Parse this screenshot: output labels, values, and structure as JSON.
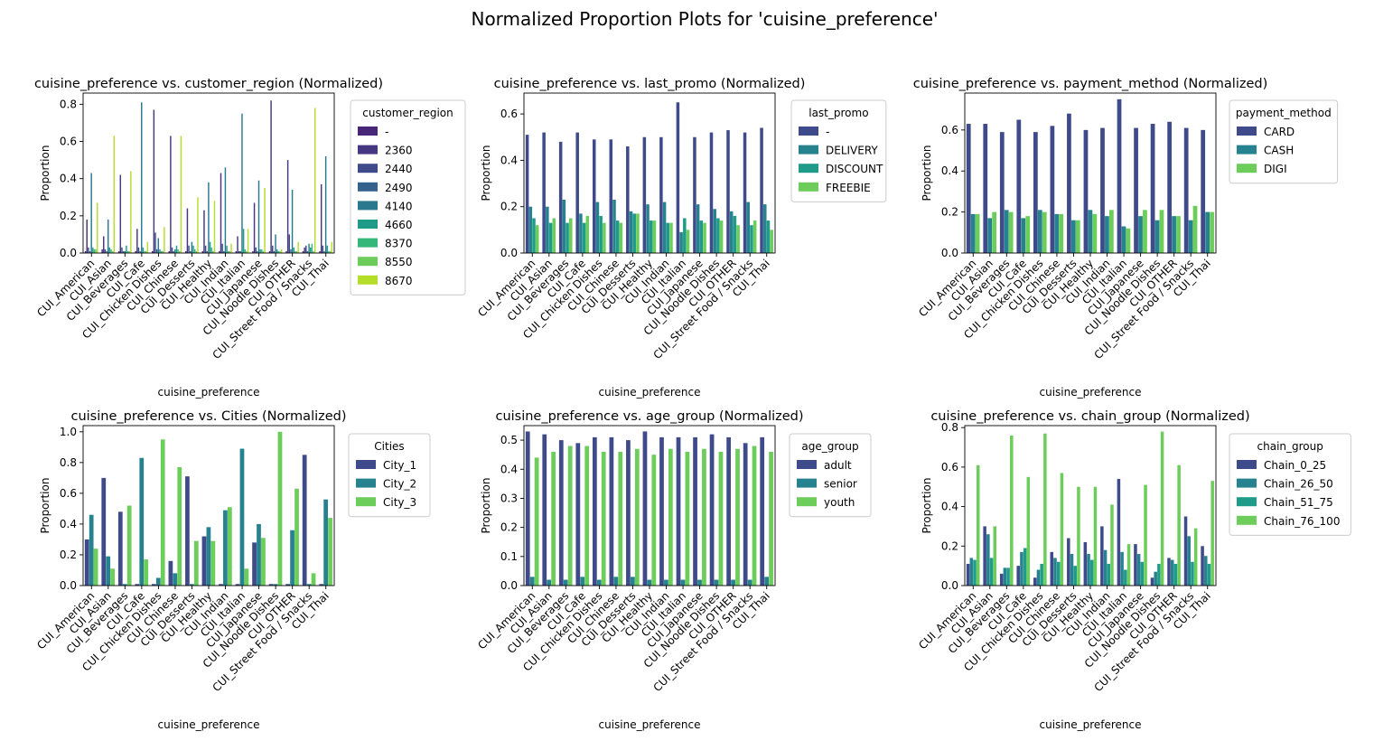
{
  "figure": {
    "title": "Normalized Proportion Plots for 'cuisine_preference'"
  },
  "categories": [
    "CUI_American",
    "CUI_Asian",
    "CUI_Beverages",
    "CUI_Cafe",
    "CUI_Chicken Dishes",
    "CUI_Chinese",
    "CUI_Desserts",
    "CUI_Healthy",
    "CUI_Indian",
    "CUI_Italian",
    "CUI_Japanese",
    "CUI_Noodle Dishes",
    "CUI_OTHER",
    "CUI_Street Food / Snacks",
    "CUI_Thai"
  ],
  "chart_data": [
    {
      "type": "bar",
      "title": "cuisine_preference vs. customer_region (Normalized)",
      "xlabel": "cuisine_preference",
      "ylabel": "Proportion",
      "ylim": [
        0,
        0.86
      ],
      "yticks": [
        0.0,
        0.2,
        0.4,
        0.6,
        0.8
      ],
      "legend_title": "customer_region",
      "legend_position": "outside-right",
      "series": [
        {
          "name": "-",
          "color": "#482677",
          "values": [
            0.01,
            0.02,
            0.01,
            0.01,
            0.01,
            0.01,
            0.01,
            0.01,
            0.01,
            0.01,
            0.01,
            0.01,
            0.01,
            0.01,
            0.01
          ]
        },
        {
          "name": "2360",
          "color": "#453781",
          "values": [
            0.18,
            0.09,
            0.42,
            0.13,
            0.77,
            0.63,
            0.24,
            0.23,
            0.43,
            0.09,
            0.27,
            0.82,
            0.5,
            0.03,
            0.37
          ]
        },
        {
          "name": "2440",
          "color": "#3E4A89",
          "values": [
            0.03,
            0.02,
            0.03,
            0.03,
            0.11,
            0.03,
            0.04,
            0.04,
            0.05,
            0.01,
            0.03,
            0.04,
            0.1,
            0.04,
            0.04
          ]
        },
        {
          "name": "2490",
          "color": "#33638D",
          "values": [
            0.01,
            0.01,
            0.01,
            0.01,
            0.02,
            0.01,
            0.01,
            0.01,
            0.01,
            0.01,
            0.01,
            0.01,
            0.02,
            0.01,
            0.01
          ]
        },
        {
          "name": "4140",
          "color": "#2A788E",
          "values": [
            0.43,
            0.18,
            0.01,
            0.81,
            0.08,
            0.02,
            0.06,
            0.38,
            0.46,
            0.75,
            0.39,
            0.1,
            0.34,
            0.05,
            0.52
          ]
        },
        {
          "name": "4660",
          "color": "#1E9C89",
          "values": [
            0.03,
            0.03,
            0.04,
            0.03,
            0.02,
            0.04,
            0.04,
            0.06,
            0.04,
            0.13,
            0.02,
            0.02,
            0.03,
            0.03,
            0.04
          ]
        },
        {
          "name": "8370",
          "color": "#35B779",
          "values": [
            0.02,
            0.02,
            0.01,
            0.01,
            0.01,
            0.02,
            0.02,
            0.03,
            0.01,
            0.02,
            0.02,
            0.01,
            0.01,
            0.05,
            0.01
          ]
        },
        {
          "name": "8550",
          "color": "#6CCD5A",
          "values": [
            0.02,
            0.01,
            0.01,
            0.01,
            0.01,
            0.01,
            0.01,
            0.01,
            0.01,
            0.01,
            0.01,
            0.01,
            0.01,
            0.01,
            0.01
          ]
        },
        {
          "name": "8670",
          "color": "#B5DE2B",
          "values": [
            0.27,
            0.63,
            0.44,
            0.06,
            0.14,
            0.63,
            0.3,
            0.28,
            0.05,
            0.13,
            0.35,
            0.02,
            0.06,
            0.78,
            0.06
          ]
        }
      ]
    },
    {
      "type": "bar",
      "title": "cuisine_preference vs. last_promo (Normalized)",
      "xlabel": "cuisine_preference",
      "ylabel": "Proportion",
      "ylim": [
        0,
        0.69
      ],
      "yticks": [
        0.0,
        0.2,
        0.4,
        0.6
      ],
      "legend_title": "last_promo",
      "legend_position": "outside-right",
      "series": [
        {
          "name": "-",
          "color": "#3E4A89",
          "values": [
            0.51,
            0.52,
            0.48,
            0.52,
            0.49,
            0.49,
            0.46,
            0.5,
            0.5,
            0.65,
            0.5,
            0.52,
            0.53,
            0.52,
            0.54
          ]
        },
        {
          "name": "DELIVERY",
          "color": "#26828E",
          "values": [
            0.2,
            0.2,
            0.23,
            0.17,
            0.22,
            0.23,
            0.18,
            0.21,
            0.22,
            0.09,
            0.21,
            0.19,
            0.18,
            0.22,
            0.21
          ]
        },
        {
          "name": "DISCOUNT",
          "color": "#1E9C89",
          "values": [
            0.15,
            0.13,
            0.13,
            0.13,
            0.16,
            0.14,
            0.17,
            0.14,
            0.13,
            0.15,
            0.14,
            0.15,
            0.16,
            0.12,
            0.14
          ]
        },
        {
          "name": "FREEBIE",
          "color": "#6CCD5A",
          "values": [
            0.12,
            0.15,
            0.15,
            0.16,
            0.13,
            0.13,
            0.17,
            0.14,
            0.13,
            0.1,
            0.13,
            0.14,
            0.12,
            0.14,
            0.1
          ]
        }
      ]
    },
    {
      "type": "bar",
      "title": "cuisine_preference vs. payment_method (Normalized)",
      "xlabel": "cuisine_preference",
      "ylabel": "Proportion",
      "ylim": [
        0,
        0.78
      ],
      "yticks": [
        0.0,
        0.2,
        0.4,
        0.6
      ],
      "legend_title": "payment_method",
      "legend_position": "outside-right",
      "series": [
        {
          "name": "CARD",
          "color": "#3E4A89",
          "values": [
            0.63,
            0.63,
            0.59,
            0.65,
            0.59,
            0.62,
            0.68,
            0.6,
            0.61,
            0.75,
            0.61,
            0.63,
            0.64,
            0.61,
            0.6
          ]
        },
        {
          "name": "CASH",
          "color": "#26828E",
          "values": [
            0.19,
            0.17,
            0.21,
            0.17,
            0.21,
            0.19,
            0.16,
            0.21,
            0.18,
            0.13,
            0.18,
            0.16,
            0.18,
            0.16,
            0.2
          ]
        },
        {
          "name": "DIGI",
          "color": "#6CCD5A",
          "values": [
            0.19,
            0.2,
            0.2,
            0.18,
            0.2,
            0.19,
            0.16,
            0.19,
            0.21,
            0.12,
            0.21,
            0.21,
            0.18,
            0.23,
            0.2
          ]
        }
      ]
    },
    {
      "type": "bar",
      "title": "cuisine_preference vs. Cities (Normalized)",
      "xlabel": "cuisine_preference",
      "ylabel": "Proportion",
      "ylim": [
        0,
        1.04
      ],
      "yticks": [
        0.0,
        0.2,
        0.4,
        0.6,
        0.8,
        1.0
      ],
      "legend_title": "Cities",
      "legend_position": "outside-right",
      "series": [
        {
          "name": "City_1",
          "color": "#3E4A89",
          "values": [
            0.3,
            0.7,
            0.48,
            0.01,
            0.01,
            0.16,
            0.71,
            0.32,
            0.01,
            0.01,
            0.28,
            0.01,
            0.01,
            0.85,
            0.01
          ]
        },
        {
          "name": "City_2",
          "color": "#26828E",
          "values": [
            0.46,
            0.19,
            0.01,
            0.83,
            0.05,
            0.08,
            0.01,
            0.38,
            0.49,
            0.89,
            0.4,
            0.01,
            0.36,
            0.01,
            0.56
          ]
        },
        {
          "name": "City_3",
          "color": "#6CCD5A",
          "values": [
            0.24,
            0.11,
            0.52,
            0.17,
            0.95,
            0.77,
            0.29,
            0.29,
            0.51,
            0.11,
            0.31,
            1.0,
            0.63,
            0.08,
            0.44
          ]
        }
      ]
    },
    {
      "type": "bar",
      "title": "cuisine_preference vs. age_group (Normalized)",
      "xlabel": "cuisine_preference",
      "ylabel": "Proportion",
      "ylim": [
        0,
        0.55
      ],
      "yticks": [
        0.0,
        0.1,
        0.2,
        0.3,
        0.4,
        0.5
      ],
      "legend_title": "age_group",
      "legend_position": "outside-right",
      "series": [
        {
          "name": "adult",
          "color": "#3E4A89",
          "values": [
            0.53,
            0.52,
            0.5,
            0.49,
            0.51,
            0.51,
            0.5,
            0.53,
            0.51,
            0.51,
            0.51,
            0.52,
            0.51,
            0.49,
            0.51
          ]
        },
        {
          "name": "senior",
          "color": "#26828E",
          "values": [
            0.03,
            0.02,
            0.02,
            0.03,
            0.02,
            0.03,
            0.03,
            0.02,
            0.02,
            0.02,
            0.02,
            0.02,
            0.02,
            0.02,
            0.03
          ]
        },
        {
          "name": "youth",
          "color": "#6CCD5A",
          "values": [
            0.44,
            0.46,
            0.48,
            0.48,
            0.46,
            0.46,
            0.47,
            0.45,
            0.47,
            0.46,
            0.47,
            0.46,
            0.47,
            0.48,
            0.46
          ]
        }
      ]
    },
    {
      "type": "bar",
      "title": "cuisine_preference vs. chain_group (Normalized)",
      "xlabel": "cuisine_preference",
      "ylabel": "Proportion",
      "ylim": [
        0,
        0.81
      ],
      "yticks": [
        0.0,
        0.2,
        0.4,
        0.6,
        0.8
      ],
      "legend_title": "chain_group",
      "legend_position": "outside-right",
      "series": [
        {
          "name": "Chain_0_25",
          "color": "#3E4A89",
          "values": [
            0.11,
            0.3,
            0.06,
            0.1,
            0.04,
            0.17,
            0.24,
            0.22,
            0.3,
            0.54,
            0.21,
            0.04,
            0.14,
            0.35,
            0.2
          ]
        },
        {
          "name": "Chain_26_50",
          "color": "#26828E",
          "values": [
            0.14,
            0.26,
            0.09,
            0.17,
            0.08,
            0.14,
            0.16,
            0.16,
            0.18,
            0.17,
            0.16,
            0.07,
            0.13,
            0.25,
            0.15
          ]
        },
        {
          "name": "Chain_51_75",
          "color": "#1E9C89",
          "values": [
            0.13,
            0.14,
            0.09,
            0.19,
            0.11,
            0.12,
            0.1,
            0.13,
            0.11,
            0.08,
            0.12,
            0.11,
            0.11,
            0.12,
            0.11
          ]
        },
        {
          "name": "Chain_76_100",
          "color": "#6CCD5A",
          "values": [
            0.61,
            0.3,
            0.76,
            0.55,
            0.77,
            0.57,
            0.5,
            0.5,
            0.41,
            0.21,
            0.51,
            0.78,
            0.61,
            0.29,
            0.53
          ]
        }
      ]
    }
  ]
}
